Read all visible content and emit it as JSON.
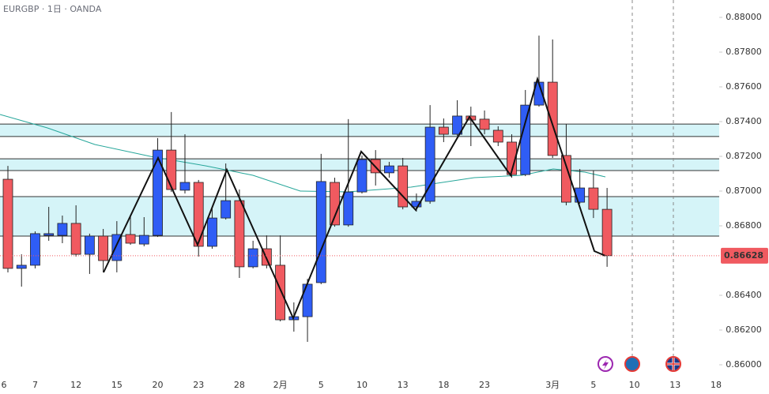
{
  "chart_data": {
    "type": "candlestick",
    "title": "EURGBP · 1日 · OANDA",
    "categories": [
      "6",
      null,
      null,
      "7",
      null,
      null,
      "12",
      null,
      null,
      "15",
      null,
      null,
      "20",
      null,
      null,
      "23",
      null,
      null,
      "28",
      null,
      null,
      "2月",
      null,
      null,
      "5",
      null,
      null,
      "10",
      null,
      null,
      "13",
      null,
      null,
      "18",
      null,
      null,
      "23",
      null,
      null,
      null,
      null,
      "3月",
      null,
      null,
      "5",
      null,
      null,
      "10",
      null,
      null,
      "13",
      null,
      null,
      "18"
    ],
    "open": [
      null,
      0.87068,
      0.86555,
      0.86573,
      0.86745,
      0.86745,
      0.86814,
      0.86636,
      0.86741,
      0.866,
      0.8675,
      0.86695,
      0.86745,
      0.87236,
      0.87005,
      0.8705,
      0.86682,
      0.86845,
      0.86945,
      0.86564,
      0.86668,
      0.86573,
      0.86259,
      0.86277,
      0.86473,
      0.8705,
      0.86805,
      0.86995,
      0.87182,
      0.87105,
      0.87145,
      0.86909,
      0.86941,
      0.87368,
      0.87327,
      0.87432,
      0.87414,
      0.8735,
      0.87282,
      0.87095,
      0.87495,
      0.87627,
      0.87205,
      0.86936,
      0.87018,
      0.86895,
      null,
      null,
      null,
      null,
      null,
      null,
      null,
      null
    ],
    "high": [
      null,
      0.87145,
      0.86636,
      0.86768,
      0.86909,
      0.86859,
      0.86918,
      0.86755,
      0.86782,
      0.86827,
      0.86864,
      0.8685,
      0.87305,
      0.87455,
      0.87327,
      0.87064,
      0.86909,
      0.87159,
      0.87009,
      0.86714,
      0.86745,
      0.86745,
      0.86359,
      0.86495,
      0.87214,
      0.87077,
      0.87414,
      0.87205,
      0.87236,
      0.87168,
      0.87191,
      0.86986,
      0.87495,
      0.87418,
      0.87523,
      0.87486,
      0.87464,
      0.87373,
      0.87327,
      0.87582,
      0.87895,
      0.87873,
      0.87386,
      0.87127,
      0.87118,
      0.87018,
      null,
      null,
      null,
      null,
      null,
      null,
      null,
      null
    ],
    "low": [
      null,
      0.86532,
      0.8645,
      0.86555,
      0.86714,
      0.867,
      0.86623,
      0.86523,
      0.86532,
      0.86532,
      0.86691,
      0.86682,
      0.86736,
      0.86995,
      0.86986,
      0.86623,
      0.86668,
      0.86836,
      0.865,
      0.86555,
      0.86555,
      0.8625,
      0.86191,
      0.86132,
      0.86464,
      0.86795,
      0.86795,
      0.86986,
      0.87032,
      0.87077,
      0.86895,
      0.86882,
      0.86927,
      0.87282,
      0.87318,
      0.87259,
      0.87327,
      0.87259,
      0.87077,
      0.87086,
      0.87486,
      0.87191,
      0.86918,
      0.86927,
      0.86845,
      0.86564,
      null,
      null,
      null,
      null,
      null,
      null,
      null,
      null
    ],
    "close": [
      null,
      0.86555,
      0.86573,
      0.86755,
      0.86755,
      0.86814,
      0.86636,
      0.86741,
      0.866,
      0.8675,
      0.867,
      0.86745,
      0.87236,
      0.87009,
      0.8705,
      0.86682,
      0.86845,
      0.86945,
      0.86564,
      0.86668,
      0.86573,
      0.86259,
      0.86277,
      0.86464,
      0.87055,
      0.86805,
      0.86995,
      0.87182,
      0.87105,
      0.87145,
      0.86909,
      0.86941,
      0.87368,
      0.87327,
      0.87432,
      0.87409,
      0.87355,
      0.87282,
      0.87095,
      0.87495,
      0.87627,
      0.87205,
      0.86936,
      0.87018,
      0.86895,
      0.86628,
      null,
      null,
      null,
      null,
      null,
      null,
      null,
      null
    ],
    "up_color": "#2f5df5",
    "down_color": "#f05a60",
    "zones": [
      [
        0.87314,
        0.87386
      ],
      [
        0.87118,
        0.87186
      ],
      [
        0.86741,
        0.86968
      ]
    ],
    "ylim": [
      0.86,
      0.88
    ],
    "yticks": [
      {
        "value": 0.86,
        "label": "0.86000"
      },
      {
        "value": 0.862,
        "label": "0.86200"
      },
      {
        "value": 0.864,
        "label": "0.86400"
      },
      {
        "value": 0.868,
        "label": "0.86800"
      },
      {
        "value": 0.87,
        "label": "0.87000"
      },
      {
        "value": 0.872,
        "label": "0.87200"
      },
      {
        "value": 0.874,
        "label": "0.87400"
      },
      {
        "value": 0.876,
        "label": "0.87600"
      },
      {
        "value": 0.878,
        "label": "0.87800"
      },
      {
        "value": 0.88,
        "label": "0.88000"
      }
    ],
    "last_price": {
      "value": 0.86628,
      "label": "0.86628"
    }
  }
}
